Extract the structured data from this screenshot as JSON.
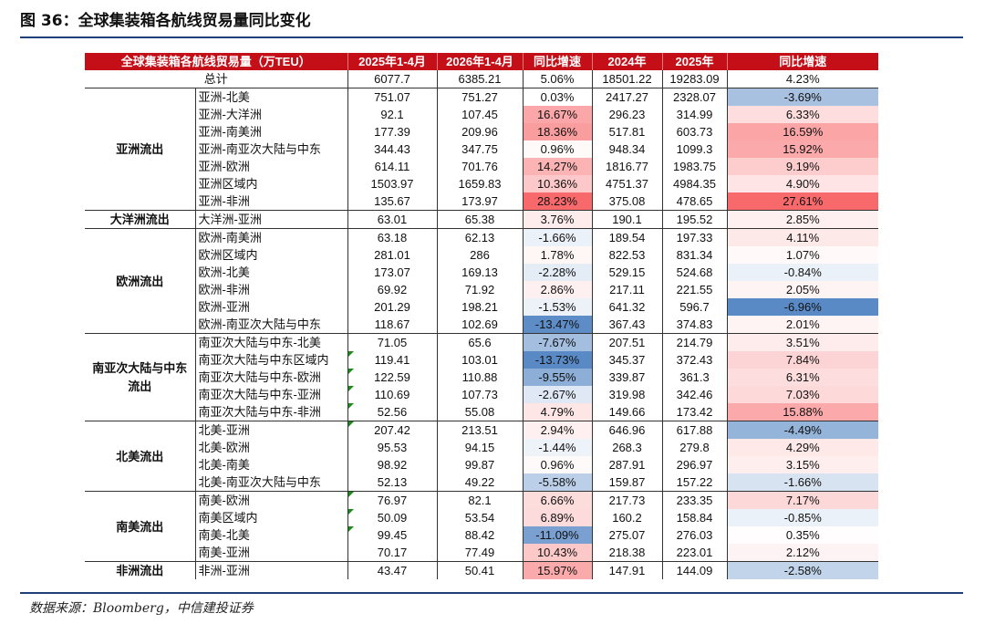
{
  "figure_title": "图 36：全球集装箱各航线贸易量同比变化",
  "source": "数据来源：Bloomberg，中信建投证券",
  "chart_data": {
    "type": "table",
    "columns": [
      "全球集装箱各航线贸易量（万TEU）",
      "",
      "2025年1-4月",
      "2026年1-4月",
      "同比增速",
      "2024年",
      "2025年",
      "同比增速"
    ],
    "total": {
      "label": "总计",
      "v2025_14": "6077.7",
      "v2026_14": "6385.21",
      "yoy1": "5.06%",
      "v2024": "18501.22",
      "v2025": "19283.09",
      "yoy2": "4.23%"
    },
    "groups": [
      {
        "region": "亚洲流出",
        "rows": [
          {
            "route": "亚洲-北美",
            "a": "751.07",
            "b": "751.27",
            "y1": "0.03%",
            "c": "2417.27",
            "d": "2328.07",
            "y2": "-3.69%",
            "y1v": 0.03,
            "y2v": -3.69
          },
          {
            "route": "亚洲-大洋洲",
            "a": "92.1",
            "b": "107.45",
            "y1": "16.67%",
            "c": "296.23",
            "d": "314.99",
            "y2": "6.33%",
            "y1v": 16.67,
            "y2v": 6.33
          },
          {
            "route": "亚洲-南美洲",
            "a": "177.39",
            "b": "209.96",
            "y1": "18.36%",
            "c": "517.81",
            "d": "603.73",
            "y2": "16.59%",
            "y1v": 18.36,
            "y2v": 16.59
          },
          {
            "route": "亚洲-南亚次大陆与中东",
            "a": "344.43",
            "b": "347.75",
            "y1": "0.96%",
            "c": "948.34",
            "d": "1099.3",
            "y2": "15.92%",
            "y1v": 0.96,
            "y2v": 15.92
          },
          {
            "route": "亚洲-欧洲",
            "a": "614.11",
            "b": "701.76",
            "y1": "14.27%",
            "c": "1816.77",
            "d": "1983.75",
            "y2": "9.19%",
            "y1v": 14.27,
            "y2v": 9.19
          },
          {
            "route": "亚洲区域内",
            "a": "1503.97",
            "b": "1659.83",
            "y1": "10.36%",
            "c": "4751.37",
            "d": "4984.35",
            "y2": "4.90%",
            "y1v": 10.36,
            "y2v": 4.9
          },
          {
            "route": "亚洲-非洲",
            "a": "135.67",
            "b": "173.97",
            "y1": "28.23%",
            "c": "375.08",
            "d": "478.65",
            "y2": "27.61%",
            "y1v": 28.23,
            "y2v": 27.61
          }
        ]
      },
      {
        "region": "大洋洲流出",
        "rows": [
          {
            "route": "大洋洲-亚洲",
            "a": "63.01",
            "b": "65.38",
            "y1": "3.76%",
            "c": "190.1",
            "d": "195.52",
            "y2": "2.85%",
            "y1v": 3.76,
            "y2v": 2.85
          }
        ]
      },
      {
        "region": "欧洲流出",
        "rows": [
          {
            "route": "欧洲-南美洲",
            "a": "63.18",
            "b": "62.13",
            "y1": "-1.66%",
            "c": "189.54",
            "d": "197.33",
            "y2": "4.11%",
            "y1v": -1.66,
            "y2v": 4.11
          },
          {
            "route": "欧洲区域内",
            "a": "281.01",
            "b": "286",
            "y1": "1.78%",
            "c": "822.53",
            "d": "831.34",
            "y2": "1.07%",
            "y1v": 1.78,
            "y2v": 1.07
          },
          {
            "route": "欧洲-北美",
            "a": "173.07",
            "b": "169.13",
            "y1": "-2.28%",
            "c": "529.15",
            "d": "524.68",
            "y2": "-0.84%",
            "y1v": -2.28,
            "y2v": -0.84
          },
          {
            "route": "欧洲-非洲",
            "a": "69.92",
            "b": "71.92",
            "y1": "2.86%",
            "c": "217.11",
            "d": "221.55",
            "y2": "2.05%",
            "y1v": 2.86,
            "y2v": 2.05
          },
          {
            "route": "欧洲-亚洲",
            "a": "201.29",
            "b": "198.21",
            "y1": "-1.53%",
            "c": "641.32",
            "d": "596.7",
            "y2": "-6.96%",
            "y1v": -1.53,
            "y2v": -6.96
          },
          {
            "route": "欧洲-南亚次大陆与中东",
            "a": "118.67",
            "b": "102.69",
            "y1": "-13.47%",
            "c": "367.43",
            "d": "374.83",
            "y2": "2.01%",
            "y1v": -13.47,
            "y2v": 2.01
          }
        ]
      },
      {
        "region": "南亚次大陆与中东流出",
        "rows": [
          {
            "route": "南亚次大陆与中东-北美",
            "a": "71.05",
            "b": "65.6",
            "y1": "-7.67%",
            "c": "207.51",
            "d": "214.79",
            "y2": "3.51%",
            "y1v": -7.67,
            "y2v": 3.51,
            "flag": false
          },
          {
            "route": "南亚次大陆与中东区域内",
            "a": "119.41",
            "b": "103.01",
            "y1": "-13.73%",
            "c": "345.37",
            "d": "372.43",
            "y2": "7.84%",
            "y1v": -13.73,
            "y2v": 7.84,
            "flag": true
          },
          {
            "route": "南亚次大陆与中东-欧洲",
            "a": "122.59",
            "b": "110.88",
            "y1": "-9.55%",
            "c": "339.87",
            "d": "361.3",
            "y2": "6.31%",
            "y1v": -9.55,
            "y2v": 6.31,
            "flag": true
          },
          {
            "route": "南亚次大陆与中东-亚洲",
            "a": "110.69",
            "b": "107.73",
            "y1": "-2.67%",
            "c": "319.98",
            "d": "342.46",
            "y2": "7.03%",
            "y1v": -2.67,
            "y2v": 7.03,
            "flag": true
          },
          {
            "route": "南亚次大陆与中东-非洲",
            "a": "52.56",
            "b": "55.08",
            "y1": "4.79%",
            "c": "149.66",
            "d": "173.42",
            "y2": "15.88%",
            "y1v": 4.79,
            "y2v": 15.88,
            "flag": true
          }
        ]
      },
      {
        "region": "北美流出",
        "rows": [
          {
            "route": "北美-亚洲",
            "a": "207.42",
            "b": "213.51",
            "y1": "2.94%",
            "c": "646.96",
            "d": "617.88",
            "y2": "-4.49%",
            "y1v": 2.94,
            "y2v": -4.49,
            "flag": true
          },
          {
            "route": "北美-欧洲",
            "a": "95.53",
            "b": "94.15",
            "y1": "-1.44%",
            "c": "268.3",
            "d": "279.8",
            "y2": "4.29%",
            "y1v": -1.44,
            "y2v": 4.29
          },
          {
            "route": "北美-南美",
            "a": "98.92",
            "b": "99.87",
            "y1": "0.96%",
            "c": "287.91",
            "d": "296.97",
            "y2": "3.15%",
            "y1v": 0.96,
            "y2v": 3.15
          },
          {
            "route": "北美-南亚次大陆与中东",
            "a": "52.13",
            "b": "49.22",
            "y1": "-5.58%",
            "c": "159.87",
            "d": "157.22",
            "y2": "-1.66%",
            "y1v": -5.58,
            "y2v": -1.66
          }
        ]
      },
      {
        "region": "南美流出",
        "rows": [
          {
            "route": "南美-欧洲",
            "a": "76.97",
            "b": "82.1",
            "y1": "6.66%",
            "c": "217.73",
            "d": "233.35",
            "y2": "7.17%",
            "y1v": 6.66,
            "y2v": 7.17,
            "flag": true
          },
          {
            "route": "南美区域内",
            "a": "50.09",
            "b": "53.54",
            "y1": "6.89%",
            "c": "160.2",
            "d": "158.84",
            "y2": "-0.85%",
            "y1v": 6.89,
            "y2v": -0.85,
            "flag": true
          },
          {
            "route": "南美-北美",
            "a": "99.45",
            "b": "88.42",
            "y1": "-11.09%",
            "c": "275.07",
            "d": "276.03",
            "y2": "0.35%",
            "y1v": -11.09,
            "y2v": 0.35,
            "flag": true
          },
          {
            "route": "南美-亚洲",
            "a": "70.17",
            "b": "77.49",
            "y1": "10.43%",
            "c": "218.38",
            "d": "223.01",
            "y2": "2.12%",
            "y1v": 10.43,
            "y2v": 2.12
          }
        ]
      },
      {
        "region": "非洲流出",
        "rows": [
          {
            "route": "非洲-亚洲",
            "a": "43.47",
            "b": "50.41",
            "y1": "15.97%",
            "c": "147.91",
            "d": "144.09",
            "y2": "-2.58%",
            "y1v": 15.97,
            "y2v": -2.58
          }
        ]
      }
    ],
    "color_scale": {
      "positive": "#f8696b",
      "negative": "#5a8ac6",
      "neutral": "#ffffff",
      "header_bg": "#c40f18",
      "flag": "#1a8a1a"
    }
  }
}
